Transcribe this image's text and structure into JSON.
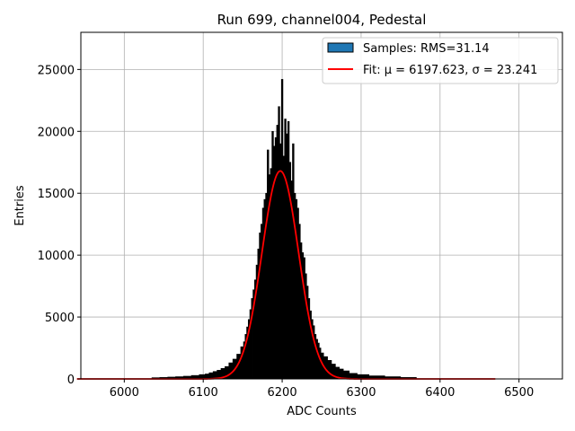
{
  "chart_data": {
    "type": "bar",
    "title": "Run 699, channel004, Pedestal",
    "xlabel": "ADC Counts",
    "ylabel": "Entries",
    "xlim": [
      5945,
      6555
    ],
    "ylim": [
      0,
      28000
    ],
    "xticks": [
      6000,
      6100,
      6200,
      6300,
      6400,
      6500
    ],
    "yticks": [
      0,
      5000,
      10000,
      15000,
      20000,
      25000
    ],
    "grid": true,
    "legend_position": "top-right",
    "series": [
      {
        "name": "Samples: RMS=31.14",
        "kind": "histogram",
        "color": "#1f77b4",
        "edgecolor": "#000000",
        "x": [
          6040,
          6050,
          6060,
          6070,
          6080,
          6090,
          6100,
          6105,
          6110,
          6115,
          6120,
          6125,
          6130,
          6135,
          6140,
          6145,
          6150,
          6152,
          6154,
          6156,
          6158,
          6160,
          6162,
          6164,
          6166,
          6168,
          6170,
          6172,
          6174,
          6176,
          6178,
          6180,
          6182,
          6184,
          6186,
          6188,
          6190,
          6192,
          6194,
          6196,
          6198,
          6200,
          6202,
          6204,
          6206,
          6208,
          6210,
          6212,
          6214,
          6216,
          6218,
          6220,
          6222,
          6224,
          6226,
          6228,
          6230,
          6232,
          6234,
          6236,
          6238,
          6240,
          6242,
          6244,
          6246,
          6248,
          6250,
          6255,
          6260,
          6265,
          6270,
          6275,
          6280,
          6290,
          6300,
          6320,
          6340,
          6360
        ],
        "values": [
          100,
          120,
          150,
          180,
          220,
          280,
          350,
          400,
          500,
          600,
          700,
          850,
          1000,
          1300,
          1600,
          2000,
          2600,
          3000,
          3600,
          4200,
          4800,
          5600,
          6500,
          7200,
          8000,
          9200,
          10500,
          11800,
          12500,
          13800,
          14500,
          15000,
          18500,
          16500,
          17000,
          20000,
          18800,
          19500,
          20500,
          22000,
          19000,
          24200,
          18000,
          21000,
          19800,
          20800,
          17500,
          16000,
          19000,
          15000,
          14500,
          13800,
          12500,
          11000,
          10200,
          9800,
          8500,
          7500,
          6500,
          5500,
          4800,
          4300,
          3600,
          3200,
          2900,
          2500,
          2100,
          1800,
          1500,
          1200,
          950,
          800,
          650,
          450,
          350,
          250,
          180,
          120
        ]
      },
      {
        "name": "Fit: μ = 6197.623, σ = 23.241",
        "kind": "gaussian_fit",
        "color": "#ff0000",
        "mu": 6197.623,
        "sigma": 23.241,
        "amplitude": 16800,
        "x_range": [
          5940,
          6470
        ]
      }
    ]
  }
}
